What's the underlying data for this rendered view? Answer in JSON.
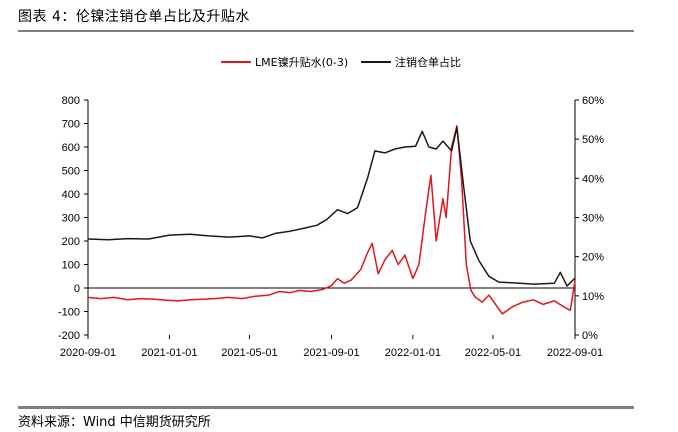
{
  "title": "图表 4：伦镍注销仓单占比及升贴水",
  "source": "资料来源：Wind 中信期货研究所",
  "chart_data": {
    "type": "line",
    "legend_position": "top-center",
    "grid": false,
    "x_ticks": [
      "2020-09-01",
      "2021-01-01",
      "2021-05-01",
      "2021-09-01",
      "2022-01-01",
      "2022-05-01",
      "2022-09-01"
    ],
    "x_range": [
      "2020-09-01",
      "2022-09-01"
    ],
    "y_left": {
      "range": [
        -200,
        800
      ],
      "ticks": [
        "800",
        "700",
        "600",
        "500",
        "400",
        "300",
        "200",
        "100",
        "0",
        "-100",
        "-200"
      ]
    },
    "y_right": {
      "range": [
        0,
        60
      ],
      "ticks": [
        "60%",
        "50%",
        "40%",
        "30%",
        "20%",
        "10%",
        "0%"
      ]
    },
    "series": [
      {
        "name": "LME镍升贴水(0-3)",
        "axis": "left",
        "color": "#e0161c",
        "points": [
          [
            "2020-09-01",
            -40
          ],
          [
            "2020-09-20",
            -45
          ],
          [
            "2020-10-10",
            -40
          ],
          [
            "2020-10-30",
            -50
          ],
          [
            "2020-11-20",
            -45
          ],
          [
            "2020-12-10",
            -48
          ],
          [
            "2020-12-28",
            -52
          ],
          [
            "2021-01-15",
            -55
          ],
          [
            "2021-02-01",
            -50
          ],
          [
            "2021-02-20",
            -48
          ],
          [
            "2021-03-10",
            -45
          ],
          [
            "2021-03-30",
            -40
          ],
          [
            "2021-04-20",
            -45
          ],
          [
            "2021-05-10",
            -35
          ],
          [
            "2021-05-30",
            -30
          ],
          [
            "2021-06-15",
            -15
          ],
          [
            "2021-07-01",
            -20
          ],
          [
            "2021-07-15",
            -10
          ],
          [
            "2021-08-01",
            -15
          ],
          [
            "2021-08-20",
            -5
          ],
          [
            "2021-09-01",
            10
          ],
          [
            "2021-09-10",
            40
          ],
          [
            "2021-09-20",
            20
          ],
          [
            "2021-10-01",
            35
          ],
          [
            "2021-10-15",
            80
          ],
          [
            "2021-10-25",
            150
          ],
          [
            "2021-11-01",
            190
          ],
          [
            "2021-11-10",
            60
          ],
          [
            "2021-11-20",
            120
          ],
          [
            "2021-12-01",
            160
          ],
          [
            "2021-12-10",
            100
          ],
          [
            "2021-12-20",
            140
          ],
          [
            "2022-01-01",
            40
          ],
          [
            "2022-01-10",
            100
          ],
          [
            "2022-01-20",
            320
          ],
          [
            "2022-01-28",
            480
          ],
          [
            "2022-02-05",
            200
          ],
          [
            "2022-02-15",
            380
          ],
          [
            "2022-02-20",
            300
          ],
          [
            "2022-02-28",
            600
          ],
          [
            "2022-03-08",
            690
          ],
          [
            "2022-03-15",
            460
          ],
          [
            "2022-03-22",
            100
          ],
          [
            "2022-03-29",
            -10
          ],
          [
            "2022-04-05",
            -40
          ],
          [
            "2022-04-15",
            -60
          ],
          [
            "2022-04-25",
            -30
          ],
          [
            "2022-05-05",
            -70
          ],
          [
            "2022-05-15",
            -110
          ],
          [
            "2022-05-30",
            -80
          ],
          [
            "2022-06-15",
            -60
          ],
          [
            "2022-07-01",
            -50
          ],
          [
            "2022-07-15",
            -70
          ],
          [
            "2022-08-01",
            -55
          ],
          [
            "2022-08-15",
            -80
          ],
          [
            "2022-08-25",
            -95
          ],
          [
            "2022-09-01",
            30
          ]
        ]
      },
      {
        "name": "注销仓单占比",
        "axis": "right",
        "color": "#1a1a1a",
        "points": [
          [
            "2020-09-01",
            24.5
          ],
          [
            "2020-10-01",
            24.3
          ],
          [
            "2020-11-01",
            24.6
          ],
          [
            "2020-12-01",
            24.5
          ],
          [
            "2021-01-01",
            25.5
          ],
          [
            "2021-02-01",
            25.7
          ],
          [
            "2021-03-01",
            25.3
          ],
          [
            "2021-04-01",
            25.0
          ],
          [
            "2021-05-01",
            25.3
          ],
          [
            "2021-05-20",
            24.8
          ],
          [
            "2021-06-10",
            26.0
          ],
          [
            "2021-07-01",
            26.5
          ],
          [
            "2021-07-20",
            27.2
          ],
          [
            "2021-08-10",
            28.0
          ],
          [
            "2021-08-25",
            29.5
          ],
          [
            "2021-09-10",
            32.0
          ],
          [
            "2021-09-25",
            31.0
          ],
          [
            "2021-10-10",
            32.5
          ],
          [
            "2021-10-25",
            40.0
          ],
          [
            "2021-11-05",
            47.0
          ],
          [
            "2021-11-20",
            46.5
          ],
          [
            "2021-12-05",
            47.5
          ],
          [
            "2021-12-20",
            48.0
          ],
          [
            "2022-01-05",
            48.2
          ],
          [
            "2022-01-15",
            52.0
          ],
          [
            "2022-01-25",
            48.0
          ],
          [
            "2022-02-05",
            47.5
          ],
          [
            "2022-02-15",
            49.5
          ],
          [
            "2022-02-28",
            47.0
          ],
          [
            "2022-03-08",
            53.0
          ],
          [
            "2022-03-18",
            38.0
          ],
          [
            "2022-03-28",
            24.0
          ],
          [
            "2022-04-10",
            19.0
          ],
          [
            "2022-04-25",
            15.0
          ],
          [
            "2022-05-10",
            13.5
          ],
          [
            "2022-06-01",
            13.3
          ],
          [
            "2022-07-01",
            13.0
          ],
          [
            "2022-08-01",
            13.2
          ],
          [
            "2022-08-10",
            16.0
          ],
          [
            "2022-08-20",
            12.5
          ],
          [
            "2022-09-01",
            14.5
          ]
        ]
      }
    ]
  }
}
